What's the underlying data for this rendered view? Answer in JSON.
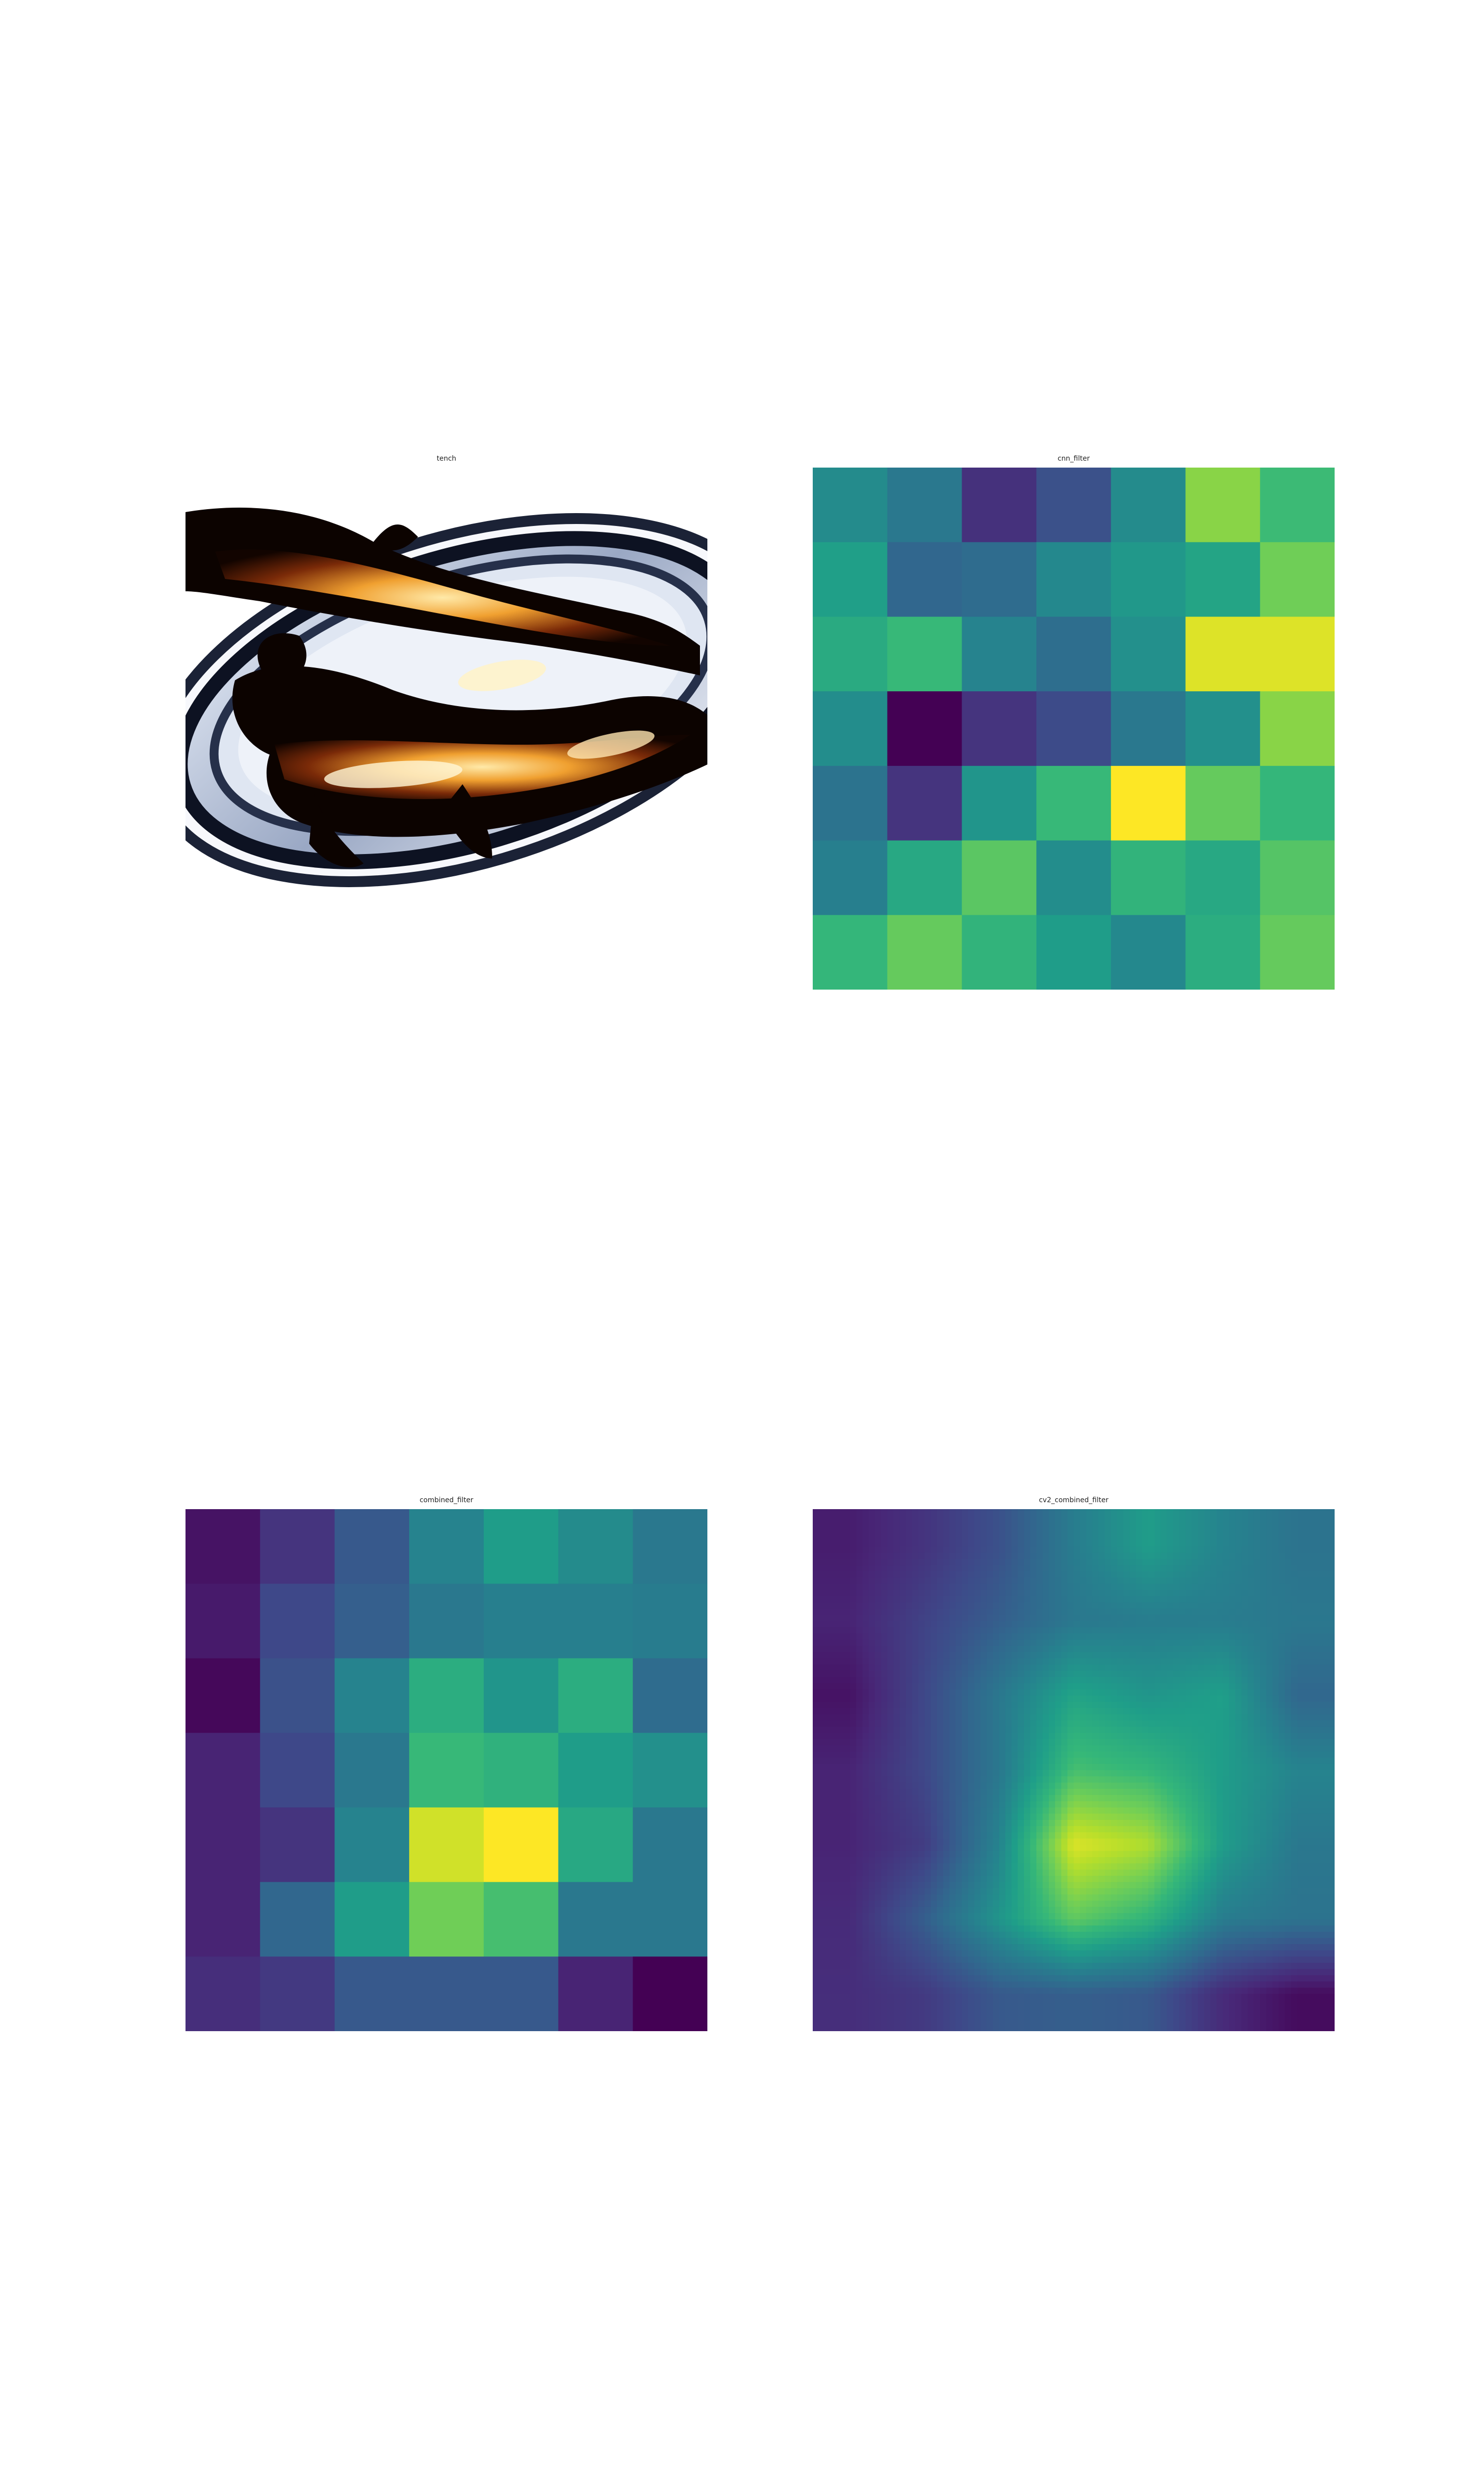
{
  "chart_data": [
    {
      "type": "image",
      "title": "tench",
      "subject": "photo of tench fish on a plate"
    },
    {
      "type": "heatmap",
      "title": "cnn_filter",
      "colormap": "viridis",
      "grid": "7x7",
      "values": [
        [
          0.48,
          0.4,
          0.14,
          0.25,
          0.48,
          0.82,
          0.68
        ],
        [
          0.56,
          0.33,
          0.35,
          0.47,
          0.53,
          0.58,
          0.78
        ],
        [
          0.61,
          0.67,
          0.45,
          0.36,
          0.5,
          0.95,
          0.95
        ],
        [
          0.49,
          0.0,
          0.15,
          0.23,
          0.4,
          0.5,
          0.82
        ],
        [
          0.38,
          0.15,
          0.52,
          0.67,
          1.0,
          0.76,
          0.66
        ],
        [
          0.43,
          0.6,
          0.74,
          0.49,
          0.65,
          0.6,
          0.73
        ],
        [
          0.66,
          0.76,
          0.65,
          0.55,
          0.47,
          0.62,
          0.76
        ]
      ]
    },
    {
      "type": "heatmap",
      "title": "combined_filter",
      "colormap": "viridis",
      "grid": "7x7",
      "values": [
        [
          0.05,
          0.15,
          0.28,
          0.45,
          0.55,
          0.48,
          0.4
        ],
        [
          0.07,
          0.22,
          0.3,
          0.4,
          0.43,
          0.43,
          0.42
        ],
        [
          0.02,
          0.25,
          0.45,
          0.62,
          0.52,
          0.62,
          0.35
        ],
        [
          0.1,
          0.22,
          0.4,
          0.67,
          0.64,
          0.55,
          0.5
        ],
        [
          0.1,
          0.15,
          0.45,
          0.93,
          1.0,
          0.6,
          0.4
        ],
        [
          0.1,
          0.33,
          0.55,
          0.78,
          0.7,
          0.4,
          0.4
        ],
        [
          0.13,
          0.17,
          0.28,
          0.28,
          0.28,
          0.1,
          0.0
        ]
      ]
    },
    {
      "type": "heatmap",
      "title": "cv2_combined_filter",
      "colormap": "viridis",
      "interpolation": "smooth",
      "grid": "7x7",
      "values": [
        [
          0.08,
          0.15,
          0.25,
          0.42,
          0.55,
          0.45,
          0.38
        ],
        [
          0.1,
          0.2,
          0.3,
          0.4,
          0.42,
          0.42,
          0.4
        ],
        [
          0.05,
          0.22,
          0.4,
          0.58,
          0.52,
          0.56,
          0.33
        ],
        [
          0.1,
          0.22,
          0.4,
          0.7,
          0.66,
          0.55,
          0.45
        ],
        [
          0.1,
          0.18,
          0.45,
          0.95,
          0.88,
          0.55,
          0.4
        ],
        [
          0.12,
          0.3,
          0.52,
          0.75,
          0.65,
          0.42,
          0.38
        ],
        [
          0.13,
          0.17,
          0.28,
          0.3,
          0.28,
          0.12,
          0.03
        ]
      ]
    }
  ]
}
